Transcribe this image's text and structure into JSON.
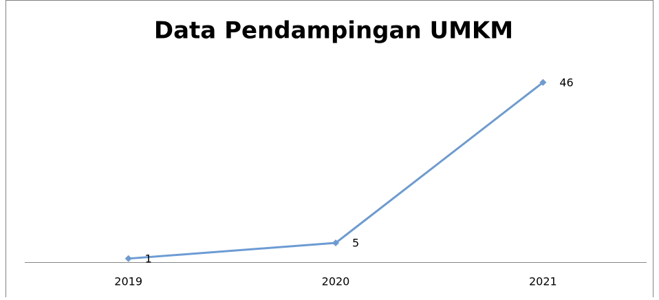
{
  "chart_data": {
    "type": "line",
    "title": "Data Pendampingan UMKM",
    "categories": [
      "2019",
      "2020",
      "2021"
    ],
    "series": [
      {
        "color": "#6b9bd2",
        "values": [
          1,
          5,
          46
        ]
      }
    ],
    "ylim": [
      0,
      50
    ]
  }
}
